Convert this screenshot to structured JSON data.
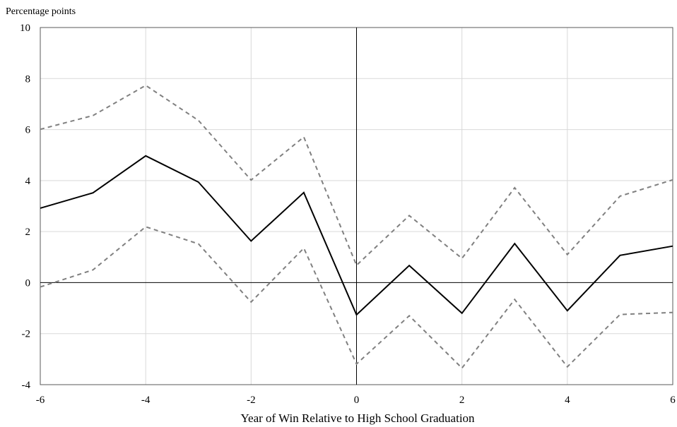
{
  "chart_data": {
    "type": "line",
    "title": "",
    "ylabel": "Percentage points",
    "xlabel": "Year of Win Relative to High School Graduation",
    "xlim": [
      -6,
      6
    ],
    "ylim": [
      -4,
      10
    ],
    "x_ticks": [
      "-6",
      "-4",
      "-2",
      "0",
      "2",
      "4",
      "6"
    ],
    "y_ticks": [
      "-4",
      "-2",
      "0",
      "2",
      "4",
      "6",
      "8",
      "10"
    ],
    "grid": true,
    "x": [
      -6,
      -5,
      -4,
      -3,
      -2,
      -1,
      0,
      1,
      2,
      3,
      4,
      5,
      6
    ],
    "series": [
      {
        "role": "estimate",
        "style": "solid",
        "color": "#000000",
        "values": [
          2.92,
          3.52,
          4.97,
          3.94,
          1.63,
          3.53,
          -1.26,
          0.67,
          -1.2,
          1.53,
          -1.1,
          1.07,
          1.43
        ]
      },
      {
        "role": "upper-bound",
        "style": "dashed",
        "color": "#808080",
        "values": [
          6.01,
          6.55,
          7.73,
          6.36,
          4.02,
          5.71,
          0.68,
          2.63,
          0.95,
          3.72,
          1.1,
          3.39,
          4.03
        ]
      },
      {
        "role": "lower-bound",
        "style": "dashed",
        "color": "#808080",
        "values": [
          -0.17,
          0.5,
          2.19,
          1.52,
          -0.76,
          1.35,
          -3.19,
          -1.3,
          -3.35,
          -0.66,
          -3.3,
          -1.25,
          -1.17
        ]
      }
    ]
  }
}
